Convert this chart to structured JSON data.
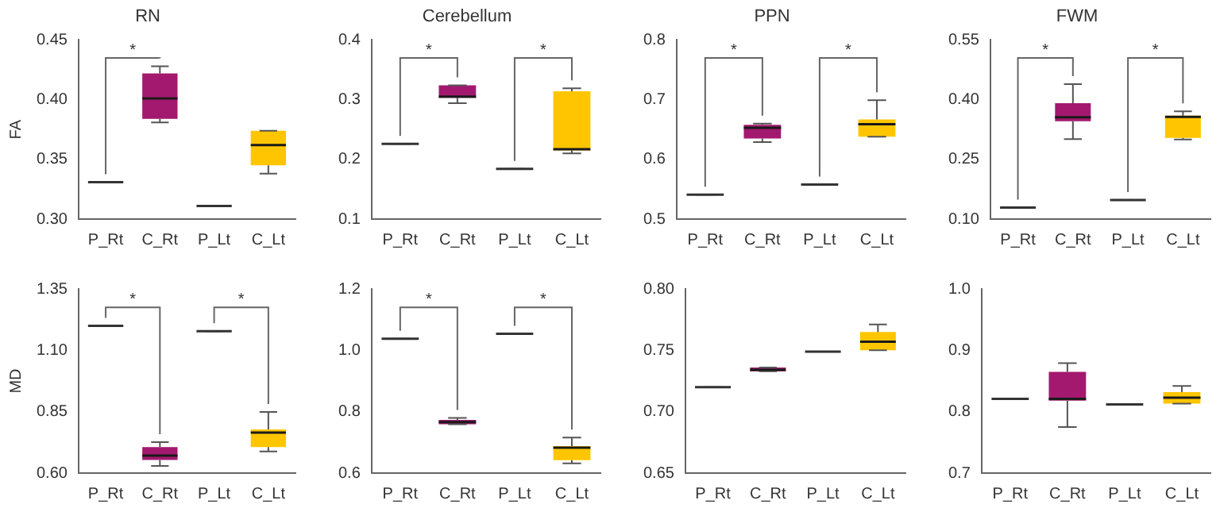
{
  "chart_data": [
    {
      "type": "box",
      "title": "RN",
      "ylabel": "FA",
      "categories": [
        "P_Rt",
        "C_Rt",
        "P_Lt",
        "C_Lt"
      ],
      "colors": [
        "#333333",
        "#a3196f",
        "#333333",
        "#ffc600"
      ],
      "ylim": [
        0.3,
        0.45
      ],
      "yticks": [
        {
          "value": 0.3,
          "label": "0.30"
        },
        {
          "value": 0.35,
          "label": "0.35"
        },
        {
          "value": 0.4,
          "label": "0.40"
        },
        {
          "value": 0.45,
          "label": "0.45"
        }
      ],
      "boxes": [
        {
          "low": 0.331,
          "q1": 0.331,
          "median": 0.331,
          "q3": 0.331,
          "high": 0.331
        },
        {
          "low": 0.381,
          "q1": 0.384,
          "median": 0.401,
          "q3": 0.422,
          "high": 0.428
        },
        {
          "low": 0.311,
          "q1": 0.311,
          "median": 0.311,
          "q3": 0.311,
          "high": 0.311
        },
        {
          "low": 0.338,
          "q1": 0.345,
          "median": 0.362,
          "q3": 0.374,
          "high": 0.374
        }
      ],
      "annotations": [
        "*"
      ]
    },
    {
      "type": "box",
      "title": "Cerebellum",
      "categories": [
        "P_Rt",
        "C_Rt",
        "P_Lt",
        "C_Lt"
      ],
      "colors": [
        "#333333",
        "#a3196f",
        "#333333",
        "#ffc600"
      ],
      "ylim": [
        0.1,
        0.4
      ],
      "yticks": [
        0.1,
        0.2,
        0.3,
        0.4
      ],
      "boxes": [
        {
          "low": 0.226,
          "q1": 0.226,
          "median": 0.226,
          "q3": 0.226,
          "high": 0.226
        },
        {
          "low": 0.294,
          "q1": 0.303,
          "median": 0.305,
          "q3": 0.324,
          "high": 0.324
        },
        {
          "low": 0.184,
          "q1": 0.184,
          "median": 0.184,
          "q3": 0.184,
          "high": 0.184
        },
        {
          "low": 0.21,
          "q1": 0.215,
          "median": 0.217,
          "q3": 0.314,
          "high": 0.319
        }
      ],
      "annotations": [
        "*",
        "*"
      ]
    },
    {
      "type": "box",
      "title": "PPN",
      "categories": [
        "P_Rt",
        "C_Rt",
        "P_Lt",
        "C_Lt"
      ],
      "colors": [
        "#333333",
        "#a3196f",
        "#333333",
        "#ffc600"
      ],
      "ylim": [
        0.5,
        0.8
      ],
      "yticks": [
        0.5,
        0.6,
        0.7,
        0.8
      ],
      "boxes": [
        {
          "low": 0.541,
          "q1": 0.541,
          "median": 0.541,
          "q3": 0.541,
          "high": 0.541
        },
        {
          "low": 0.629,
          "q1": 0.635,
          "median": 0.653,
          "q3": 0.658,
          "high": 0.66
        },
        {
          "low": 0.558,
          "q1": 0.558,
          "median": 0.558,
          "q3": 0.558,
          "high": 0.558
        },
        {
          "low": 0.638,
          "q1": 0.638,
          "median": 0.659,
          "q3": 0.667,
          "high": 0.699
        }
      ],
      "annotations": [
        "*",
        "*"
      ]
    },
    {
      "type": "box",
      "title": "FWM",
      "categories": [
        "P_Rt",
        "C_Rt",
        "P_Lt",
        "C_Lt"
      ],
      "colors": [
        "#333333",
        "#a3196f",
        "#333333",
        "#ffc600"
      ],
      "ylim": [
        0.1,
        0.55
      ],
      "yticks": [
        {
          "value": 0.1,
          "label": "0.10"
        },
        0.25,
        {
          "value": 0.4,
          "label": "0.40"
        },
        0.55
      ],
      "boxes": [
        {
          "low": 0.129,
          "q1": 0.129,
          "median": 0.129,
          "q3": 0.129,
          "high": 0.129
        },
        {
          "low": 0.301,
          "q1": 0.346,
          "median": 0.356,
          "q3": 0.391,
          "high": 0.439
        },
        {
          "low": 0.148,
          "q1": 0.148,
          "median": 0.148,
          "q3": 0.148,
          "high": 0.148
        },
        {
          "low": 0.3,
          "q1": 0.304,
          "median": 0.357,
          "q3": 0.36,
          "high": 0.371
        }
      ],
      "annotations": [
        "*",
        "*"
      ]
    },
    {
      "type": "box",
      "ylabel": "MD",
      "categories": [
        "P_Rt",
        "C_Rt",
        "P_Lt",
        "C_Lt"
      ],
      "colors": [
        "#333333",
        "#a3196f",
        "#333333",
        "#ffc600"
      ],
      "ylim": [
        0.6,
        1.35
      ],
      "yticks": [
        {
          "value": 0.6,
          "label": "0.60"
        },
        0.85,
        {
          "value": 1.1,
          "label": "1.10"
        },
        1.35
      ],
      "boxes": [
        {
          "low": 1.2,
          "q1": 1.2,
          "median": 1.2,
          "q3": 1.2,
          "high": 1.2
        },
        {
          "low": 0.629,
          "q1": 0.653,
          "median": 0.671,
          "q3": 0.706,
          "high": 0.726
        },
        {
          "low": 1.178,
          "q1": 1.178,
          "median": 1.178,
          "q3": 1.178,
          "high": 1.178
        },
        {
          "low": 0.688,
          "q1": 0.706,
          "median": 0.765,
          "q3": 0.778,
          "high": 0.849
        }
      ],
      "annotations": [
        "*",
        "*"
      ]
    },
    {
      "type": "box",
      "categories": [
        "P_Rt",
        "C_Rt",
        "P_Lt",
        "C_Lt"
      ],
      "colors": [
        "#333333",
        "#a3196f",
        "#333333",
        "#ffc600"
      ],
      "ylim": [
        0.6,
        1.2
      ],
      "yticks": [
        0.6,
        0.8,
        {
          "value": 1.0,
          "label": "1.0"
        },
        1.2
      ],
      "boxes": [
        {
          "low": 1.038,
          "q1": 1.038,
          "median": 1.038,
          "q3": 1.038,
          "high": 1.038
        },
        {
          "low": 0.759,
          "q1": 0.759,
          "median": 0.766,
          "q3": 0.773,
          "high": 0.78
        },
        {
          "low": 1.054,
          "q1": 1.054,
          "median": 1.054,
          "q3": 1.054,
          "high": 1.054
        },
        {
          "low": 0.632,
          "q1": 0.642,
          "median": 0.683,
          "q3": 0.688,
          "high": 0.716
        }
      ],
      "annotations": [
        "*",
        "*"
      ]
    },
    {
      "type": "box",
      "categories": [
        "P_Rt",
        "C_Rt",
        "P_Lt",
        "C_Lt"
      ],
      "colors": [
        "#333333",
        "#a3196f",
        "#333333",
        "#ffc600"
      ],
      "ylim": [
        0.65,
        0.8
      ],
      "yticks": [
        0.65,
        {
          "value": 0.7,
          "label": "0.70"
        },
        0.75,
        {
          "value": 0.8,
          "label": "0.80"
        }
      ],
      "boxes": [
        {
          "low": 0.72,
          "q1": 0.72,
          "median": 0.72,
          "q3": 0.72,
          "high": 0.72
        },
        {
          "low": 0.733,
          "q1": 0.733,
          "median": 0.734,
          "q3": 0.736,
          "high": 0.736
        },
        {
          "low": 0.749,
          "q1": 0.749,
          "median": 0.749,
          "q3": 0.749,
          "high": 0.749
        },
        {
          "low": 0.75,
          "q1": 0.75,
          "median": 0.757,
          "q3": 0.765,
          "high": 0.771
        }
      ]
    },
    {
      "type": "box",
      "categories": [
        "P_Rt",
        "C_Rt",
        "P_Lt",
        "C_Lt"
      ],
      "colors": [
        "#333333",
        "#a3196f",
        "#333333",
        "#ffc600"
      ],
      "ylim": [
        0.7,
        1.0
      ],
      "yticks": [
        0.7,
        0.8,
        0.9,
        {
          "value": 1.0,
          "label": "1.0"
        }
      ],
      "boxes": [
        {
          "low": 0.821,
          "q1": 0.821,
          "median": 0.821,
          "q3": 0.821,
          "high": 0.821
        },
        {
          "low": 0.775,
          "q1": 0.818,
          "median": 0.821,
          "q3": 0.865,
          "high": 0.879
        },
        {
          "low": 0.812,
          "q1": 0.812,
          "median": 0.812,
          "q3": 0.812,
          "high": 0.812
        },
        {
          "low": 0.813,
          "q1": 0.813,
          "median": 0.823,
          "q3": 0.832,
          "high": 0.842
        }
      ]
    }
  ]
}
